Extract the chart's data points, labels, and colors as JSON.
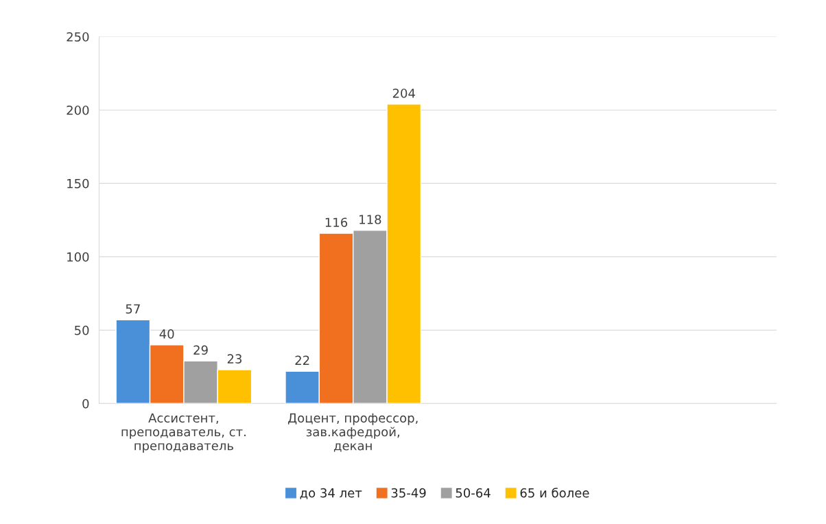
{
  "chart_data": {
    "type": "bar",
    "categories": [
      "Ассистент,\nпреподаватель, ст.\nпреподаватель",
      "Доцент, профессор,\nзав.кафедрой,\nдекан",
      null,
      null
    ],
    "series": [
      {
        "name": "до 34 лет",
        "color": "#4a90d9",
        "values": [
          57,
          22,
          null,
          null
        ]
      },
      {
        "name": "35-49",
        "color": "#f07020",
        "values": [
          40,
          116,
          null,
          null
        ]
      },
      {
        "name": "50-64",
        "color": "#a0a0a0",
        "values": [
          29,
          118,
          null,
          null
        ]
      },
      {
        "name": "65 и более",
        "color": "#ffc000",
        "values": [
          23,
          204,
          null,
          null
        ]
      }
    ],
    "ylim": [
      0,
      250
    ],
    "yticks": [
      0,
      50,
      100,
      150,
      200,
      250
    ],
    "grid": "y",
    "legend": "bottom",
    "data_labels": true
  }
}
